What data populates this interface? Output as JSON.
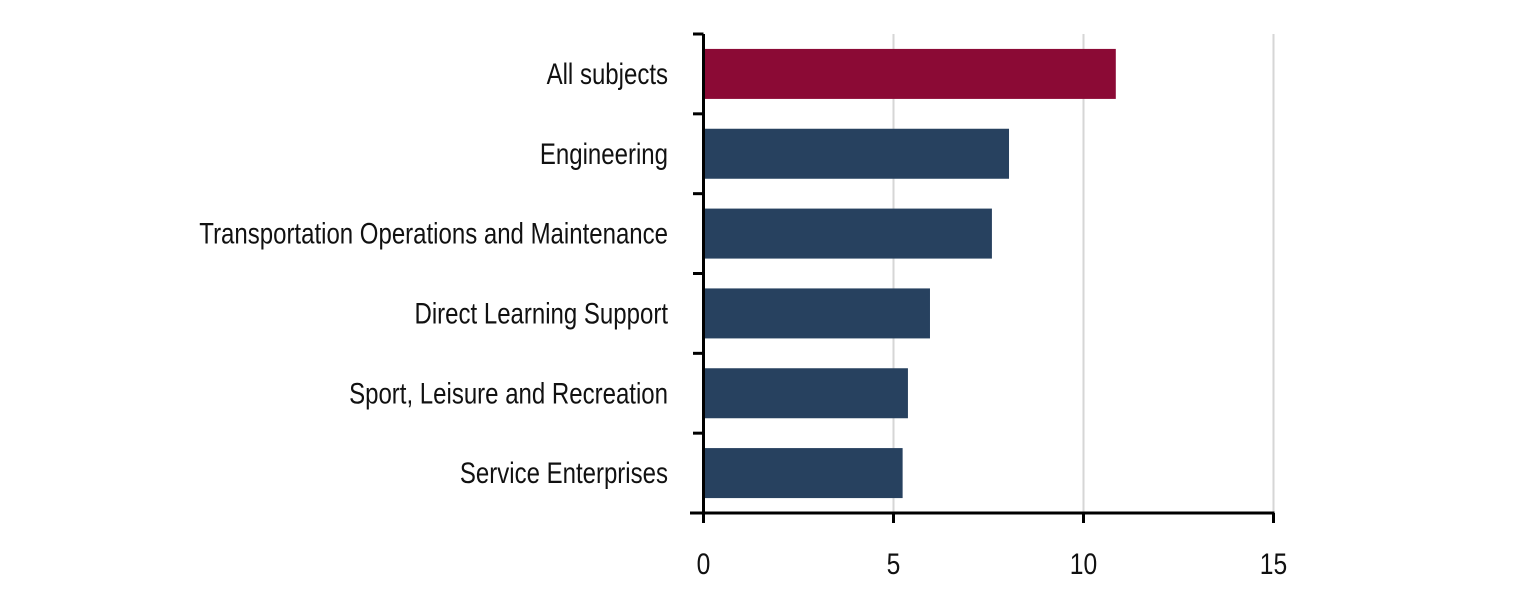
{
  "chart_data": {
    "type": "bar",
    "orientation": "horizontal",
    "title": "",
    "xlabel": "",
    "ylabel": "",
    "categories": [
      "All subjects",
      "Engineering",
      "Transportation Operations and Maintenance",
      "Direct Learning Support",
      "Sport, Leisure and Recreation",
      "Service Enterprises"
    ],
    "values": [
      10.85,
      8.04,
      7.59,
      5.96,
      5.38,
      5.24
    ],
    "bar_colors": [
      "#8b0a35",
      "#27415f",
      "#27415f",
      "#27415f",
      "#27415f",
      "#27415f"
    ],
    "xlim": [
      0,
      15
    ],
    "xticks": [
      "0",
      "5",
      "10",
      "15"
    ],
    "grid": "vertical",
    "legend": "none"
  }
}
